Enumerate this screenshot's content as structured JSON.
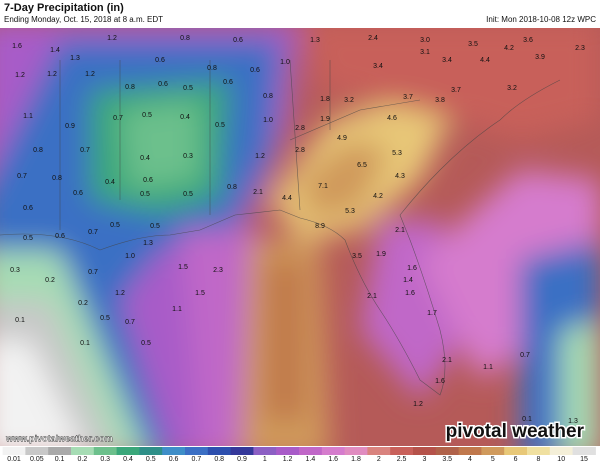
{
  "header": {
    "title": "7-Day Precipitation (in)",
    "subtitle": "Ending Monday, Oct. 15, 2018 at 8 a.m. EDT",
    "init": "Init: Mon 2018-10-08 12z WPC"
  },
  "map": {
    "labels": [
      "1.6",
      "1.4",
      "1.2",
      "0.8",
      "0.6",
      "1.3",
      "1.2",
      "1.2",
      "1.2",
      "0.6",
      "0.6",
      "0.8",
      "1.0",
      "1.3",
      "2.4",
      "3.0",
      "3.5",
      "3.6",
      "2.3",
      "3.1",
      "3.4",
      "3.4",
      "4.2",
      "4.4",
      "3.9",
      "3.2",
      "3.7",
      "3.7",
      "3.8",
      "3.2",
      "1.8",
      "1.9",
      "0.8",
      "0.6",
      "0.5",
      "0.6",
      "0.8",
      "1.1",
      "0.9",
      "0.7",
      "0.5",
      "0.4",
      "0.5",
      "1.0",
      "2.8",
      "4.9",
      "4.6",
      "0.8",
      "0.7",
      "0.4",
      "0.3",
      "1.2",
      "2.8",
      "6.5",
      "5.3",
      "0.7",
      "0.8",
      "0.4",
      "0.6",
      "0.8",
      "7.1",
      "4.3",
      "0.6",
      "0.5",
      "0.5",
      "2.1",
      "4.4",
      "4.2",
      "0.6",
      "5.3",
      "8.9",
      "0.5",
      "0.5",
      "2.1",
      "0.5",
      "0.6",
      "0.7",
      "1.3",
      "1.0",
      "1.5",
      "2.3",
      "3.5",
      "1.9",
      "1.6",
      "1.4",
      "0.3",
      "0.7",
      "0.2",
      "1.2",
      "1.5",
      "1.6",
      "0.2",
      "0.5",
      "0.7",
      "1.1",
      "0.1",
      "2.1",
      "1.7",
      "0.1",
      "0.5",
      "2.1",
      "1.1",
      "0.7",
      "1.6",
      "1.2",
      "0.1",
      "1.3"
    ]
  },
  "footer": {
    "website": "www.pivotalweather.com",
    "logo": "pivotal weather"
  },
  "colorbar": {
    "labels": [
      "0.01",
      "0.05",
      "0.1",
      "0.2",
      "0.3",
      "0.4",
      "0.5",
      "0.6",
      "0.7",
      "0.8",
      "0.9",
      "1",
      "1.2",
      "1.4",
      "1.6",
      "1.8",
      "2",
      "2.5",
      "3",
      "3.5",
      "4",
      "5",
      "6",
      "8",
      "10",
      "15"
    ],
    "colors": [
      "#f2f2f2",
      "#c8c8c8",
      "#a9a9a9",
      "#a6dcb4",
      "#6cc08c",
      "#3aa77a",
      "#2e8f88",
      "#3e8ec8",
      "#3b6fc4",
      "#2d4fae",
      "#34389a",
      "#8c5fc4",
      "#a85bc8",
      "#c067c8",
      "#d57ccd",
      "#e08cc0",
      "#d9837e",
      "#c8605a",
      "#b5524a",
      "#b0624a",
      "#c0784c",
      "#d09a5c",
      "#e8c878",
      "#f0e0a0",
      "#f4efd8",
      "#e0e0e0"
    ]
  }
}
